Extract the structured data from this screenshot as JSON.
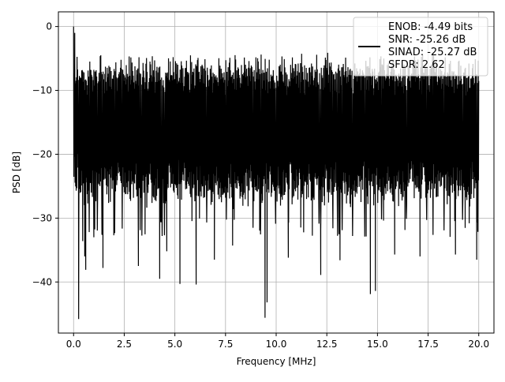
{
  "chart_data": {
    "type": "line",
    "title": "",
    "xlabel": "Frequency [MHz]",
    "ylabel": "PSD [dB]",
    "xlim": [
      -0.75,
      20.75
    ],
    "ylim": [
      -48,
      2.3
    ],
    "xticks": [
      0.0,
      2.5,
      5.0,
      7.5,
      10.0,
      12.5,
      15.0,
      17.5,
      20.0
    ],
    "xtick_labels": [
      "0.0",
      "2.5",
      "5.0",
      "7.5",
      "10.0",
      "12.5",
      "15.0",
      "17.5",
      "20.0"
    ],
    "yticks": [
      0,
      -10,
      -20,
      -30,
      -40
    ],
    "ytick_labels": [
      "0",
      "−10",
      "−20",
      "−30",
      "−40"
    ],
    "grid": true,
    "legend_position": "top-right",
    "series": [
      {
        "name": "",
        "color": "#000000",
        "description_of_shape": "dense noise floor spanning roughly -5 to -30 dB across 0-20 MHz with a peak at 0 dB near 0 MHz",
        "envelope": {
          "x_range": [
            0.0,
            20.0
          ],
          "upper_dB": -5,
          "lower_dB": -30,
          "peak": {
            "x": 0.0,
            "y": 0
          }
        },
        "deep_dips": [
          {
            "x": 0.25,
            "y": -45.8
          },
          {
            "x": 0.45,
            "y": -33.6
          },
          {
            "x": 0.55,
            "y": -36.0
          },
          {
            "x": 0.6,
            "y": -38.1
          },
          {
            "x": 1.0,
            "y": -33.0
          },
          {
            "x": 1.45,
            "y": -37.8
          },
          {
            "x": 3.2,
            "y": -37.5
          },
          {
            "x": 4.25,
            "y": -39.5
          },
          {
            "x": 4.6,
            "y": -35.2
          },
          {
            "x": 5.25,
            "y": -40.3
          },
          {
            "x": 6.05,
            "y": -40.4
          },
          {
            "x": 6.95,
            "y": -36.5
          },
          {
            "x": 7.85,
            "y": -34.3
          },
          {
            "x": 9.45,
            "y": -45.6
          },
          {
            "x": 9.55,
            "y": -43.2
          },
          {
            "x": 10.6,
            "y": -36.2
          },
          {
            "x": 12.2,
            "y": -38.9
          },
          {
            "x": 13.15,
            "y": -36.6
          },
          {
            "x": 14.65,
            "y": -41.9
          },
          {
            "x": 14.9,
            "y": -41.4
          },
          {
            "x": 15.85,
            "y": -35.7
          },
          {
            "x": 17.1,
            "y": -36.0
          },
          {
            "x": 18.85,
            "y": -35.7
          },
          {
            "x": 19.9,
            "y": -36.5
          }
        ]
      }
    ],
    "legend": {
      "lines": [
        "ENOB: -4.49 bits",
        "SNR: -25.26 dB",
        "SINAD: -25.27 dB",
        "SFDR: 2.62"
      ],
      "line_color": "#000000"
    }
  }
}
